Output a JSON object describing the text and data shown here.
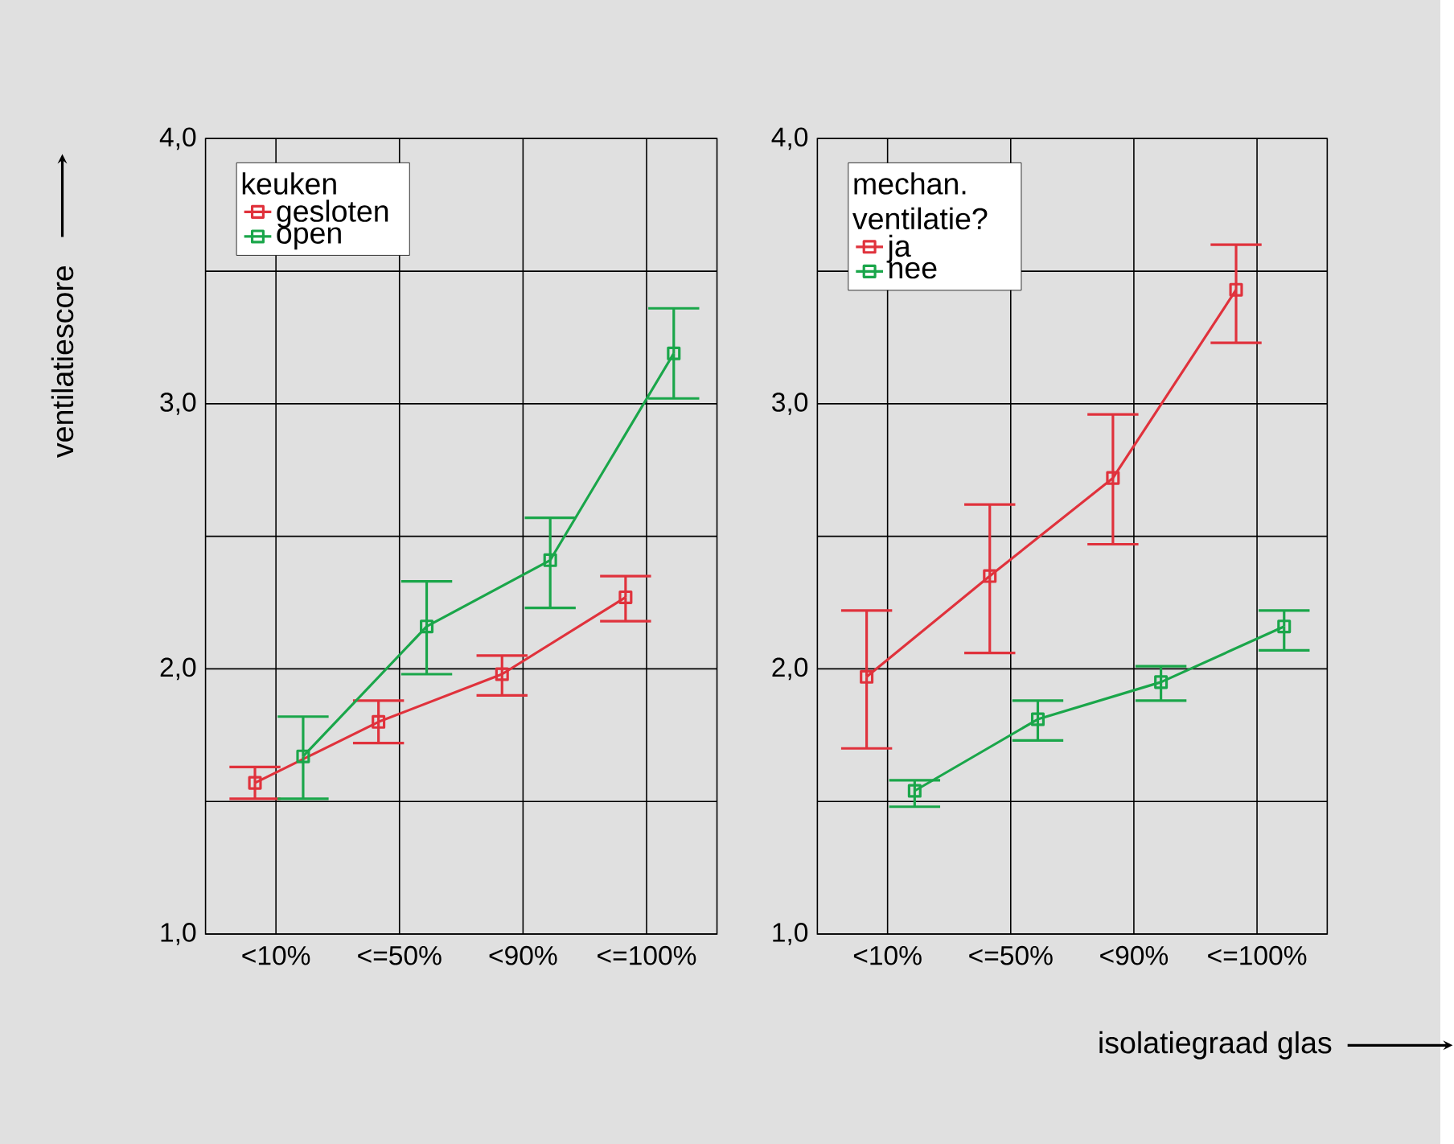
{
  "chart_data": [
    {
      "type": "line",
      "ylabel": "ventilatiescore",
      "legend_title": "keuken",
      "categories": [
        "<10%",
        "<=50%",
        "<90%",
        "<=100%"
      ],
      "series": [
        {
          "name": "gesloten",
          "color": "#e0323c",
          "values": [
            1.57,
            1.8,
            1.98,
            2.27
          ],
          "errors": [
            [
              1.51,
              1.63
            ],
            [
              1.72,
              1.88
            ],
            [
              1.9,
              2.05
            ],
            [
              2.18,
              2.35
            ]
          ]
        },
        {
          "name": "open",
          "color": "#1aa64a",
          "values": [
            1.67,
            2.16,
            2.41,
            3.19
          ],
          "errors": [
            [
              1.51,
              1.82
            ],
            [
              1.98,
              2.33
            ],
            [
              2.23,
              2.57
            ],
            [
              3.02,
              3.36
            ]
          ]
        }
      ],
      "ylim": [
        1,
        4
      ],
      "yticks": [
        {
          "value": 1,
          "label": "1,0"
        },
        {
          "value": 1.5,
          "label": null
        },
        {
          "value": 2,
          "label": "2,0"
        },
        {
          "value": 2.5,
          "label": null
        },
        {
          "value": 3,
          "label": "3,0"
        },
        {
          "value": 3.5,
          "label": null
        },
        {
          "value": 4,
          "label": "4,0"
        }
      ],
      "grid": true,
      "legend": "top left",
      "marker": "square",
      "line_style": "solid"
    },
    {
      "type": "line",
      "xlabel": "isolatiegraad glas",
      "legend_title": "mechan. ventilatie?",
      "categories": [
        "<10%",
        "<=50%",
        "<90%",
        "<=100%"
      ],
      "series": [
        {
          "name": "ja",
          "color": "#e0323c",
          "values": [
            1.97,
            2.35,
            2.72,
            3.43
          ],
          "errors": [
            [
              1.7,
              2.22
            ],
            [
              2.06,
              2.62
            ],
            [
              2.47,
              2.96
            ],
            [
              3.23,
              3.6
            ]
          ]
        },
        {
          "name": "nee",
          "color": "#1aa64a",
          "values": [
            1.54,
            1.81,
            1.95,
            2.16
          ],
          "errors": [
            [
              1.48,
              1.58
            ],
            [
              1.73,
              1.88
            ],
            [
              1.88,
              2.01
            ],
            [
              2.07,
              2.22
            ]
          ]
        }
      ],
      "ylim": [
        1,
        4
      ],
      "yticks": [
        {
          "value": 1,
          "label": "1,0"
        },
        {
          "value": 1.5,
          "label": null
        },
        {
          "value": 2,
          "label": "2,0"
        },
        {
          "value": 2.5,
          "label": null
        },
        {
          "value": 3,
          "label": "3,0"
        },
        {
          "value": 3.5,
          "label": null
        },
        {
          "value": 4,
          "label": "4,0"
        }
      ],
      "grid": true,
      "legend": "top left",
      "marker": "square",
      "line_style": "solid"
    }
  ]
}
